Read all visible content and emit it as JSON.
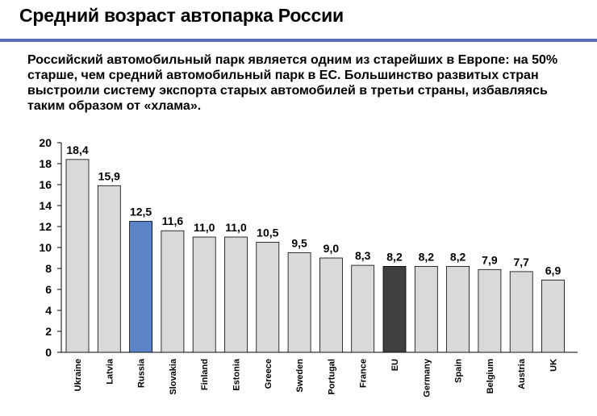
{
  "header": {
    "title": "Средний возраст автопарка России"
  },
  "description": "Российский автомобильный парк является одним из старейших в Европе: на 50% старше, чем средний автомобильный парк в ЕС. Большинство развитых стран выстроили систему экспорта старых автомобилей в третьи страны, избавляясь таким образом от «хлама».",
  "colors": {
    "bar_default": "#d9d9d9",
    "bar_highlight_russia": "#5b84c8",
    "bar_highlight_eu": "#3f3f3f",
    "title_rule": "#5b6eb8"
  },
  "chart_data": {
    "type": "bar",
    "title": "",
    "xlabel": "",
    "ylabel": "",
    "categories": [
      "Ukraine",
      "Latvia",
      "Russia",
      "Slovakia",
      "Finland",
      "Estonia",
      "Greece",
      "Sweden",
      "Portugal",
      "France",
      "EU",
      "Germany",
      "Spain",
      "Belgium",
      "Austria",
      "UK"
    ],
    "values": [
      18.4,
      15.9,
      12.5,
      11.6,
      11.0,
      11.0,
      10.5,
      9.5,
      9.0,
      8.3,
      8.2,
      8.2,
      8.2,
      7.9,
      7.7,
      6.9
    ],
    "value_labels": [
      "18,4",
      "15,9",
      "12,5",
      "11,6",
      "11,0",
      "11,0",
      "10,5",
      "9,5",
      "9,0",
      "8,3",
      "8,2",
      "8,2",
      "8,2",
      "7,9",
      "7,7",
      "6,9"
    ],
    "highlight": {
      "Russia": "#5b84c8",
      "EU": "#3f3f3f"
    },
    "ylim": [
      0,
      20
    ],
    "yticks": [
      0,
      2,
      4,
      6,
      8,
      10,
      12,
      14,
      16,
      18,
      20
    ],
    "grid": false,
    "legend": "none"
  }
}
